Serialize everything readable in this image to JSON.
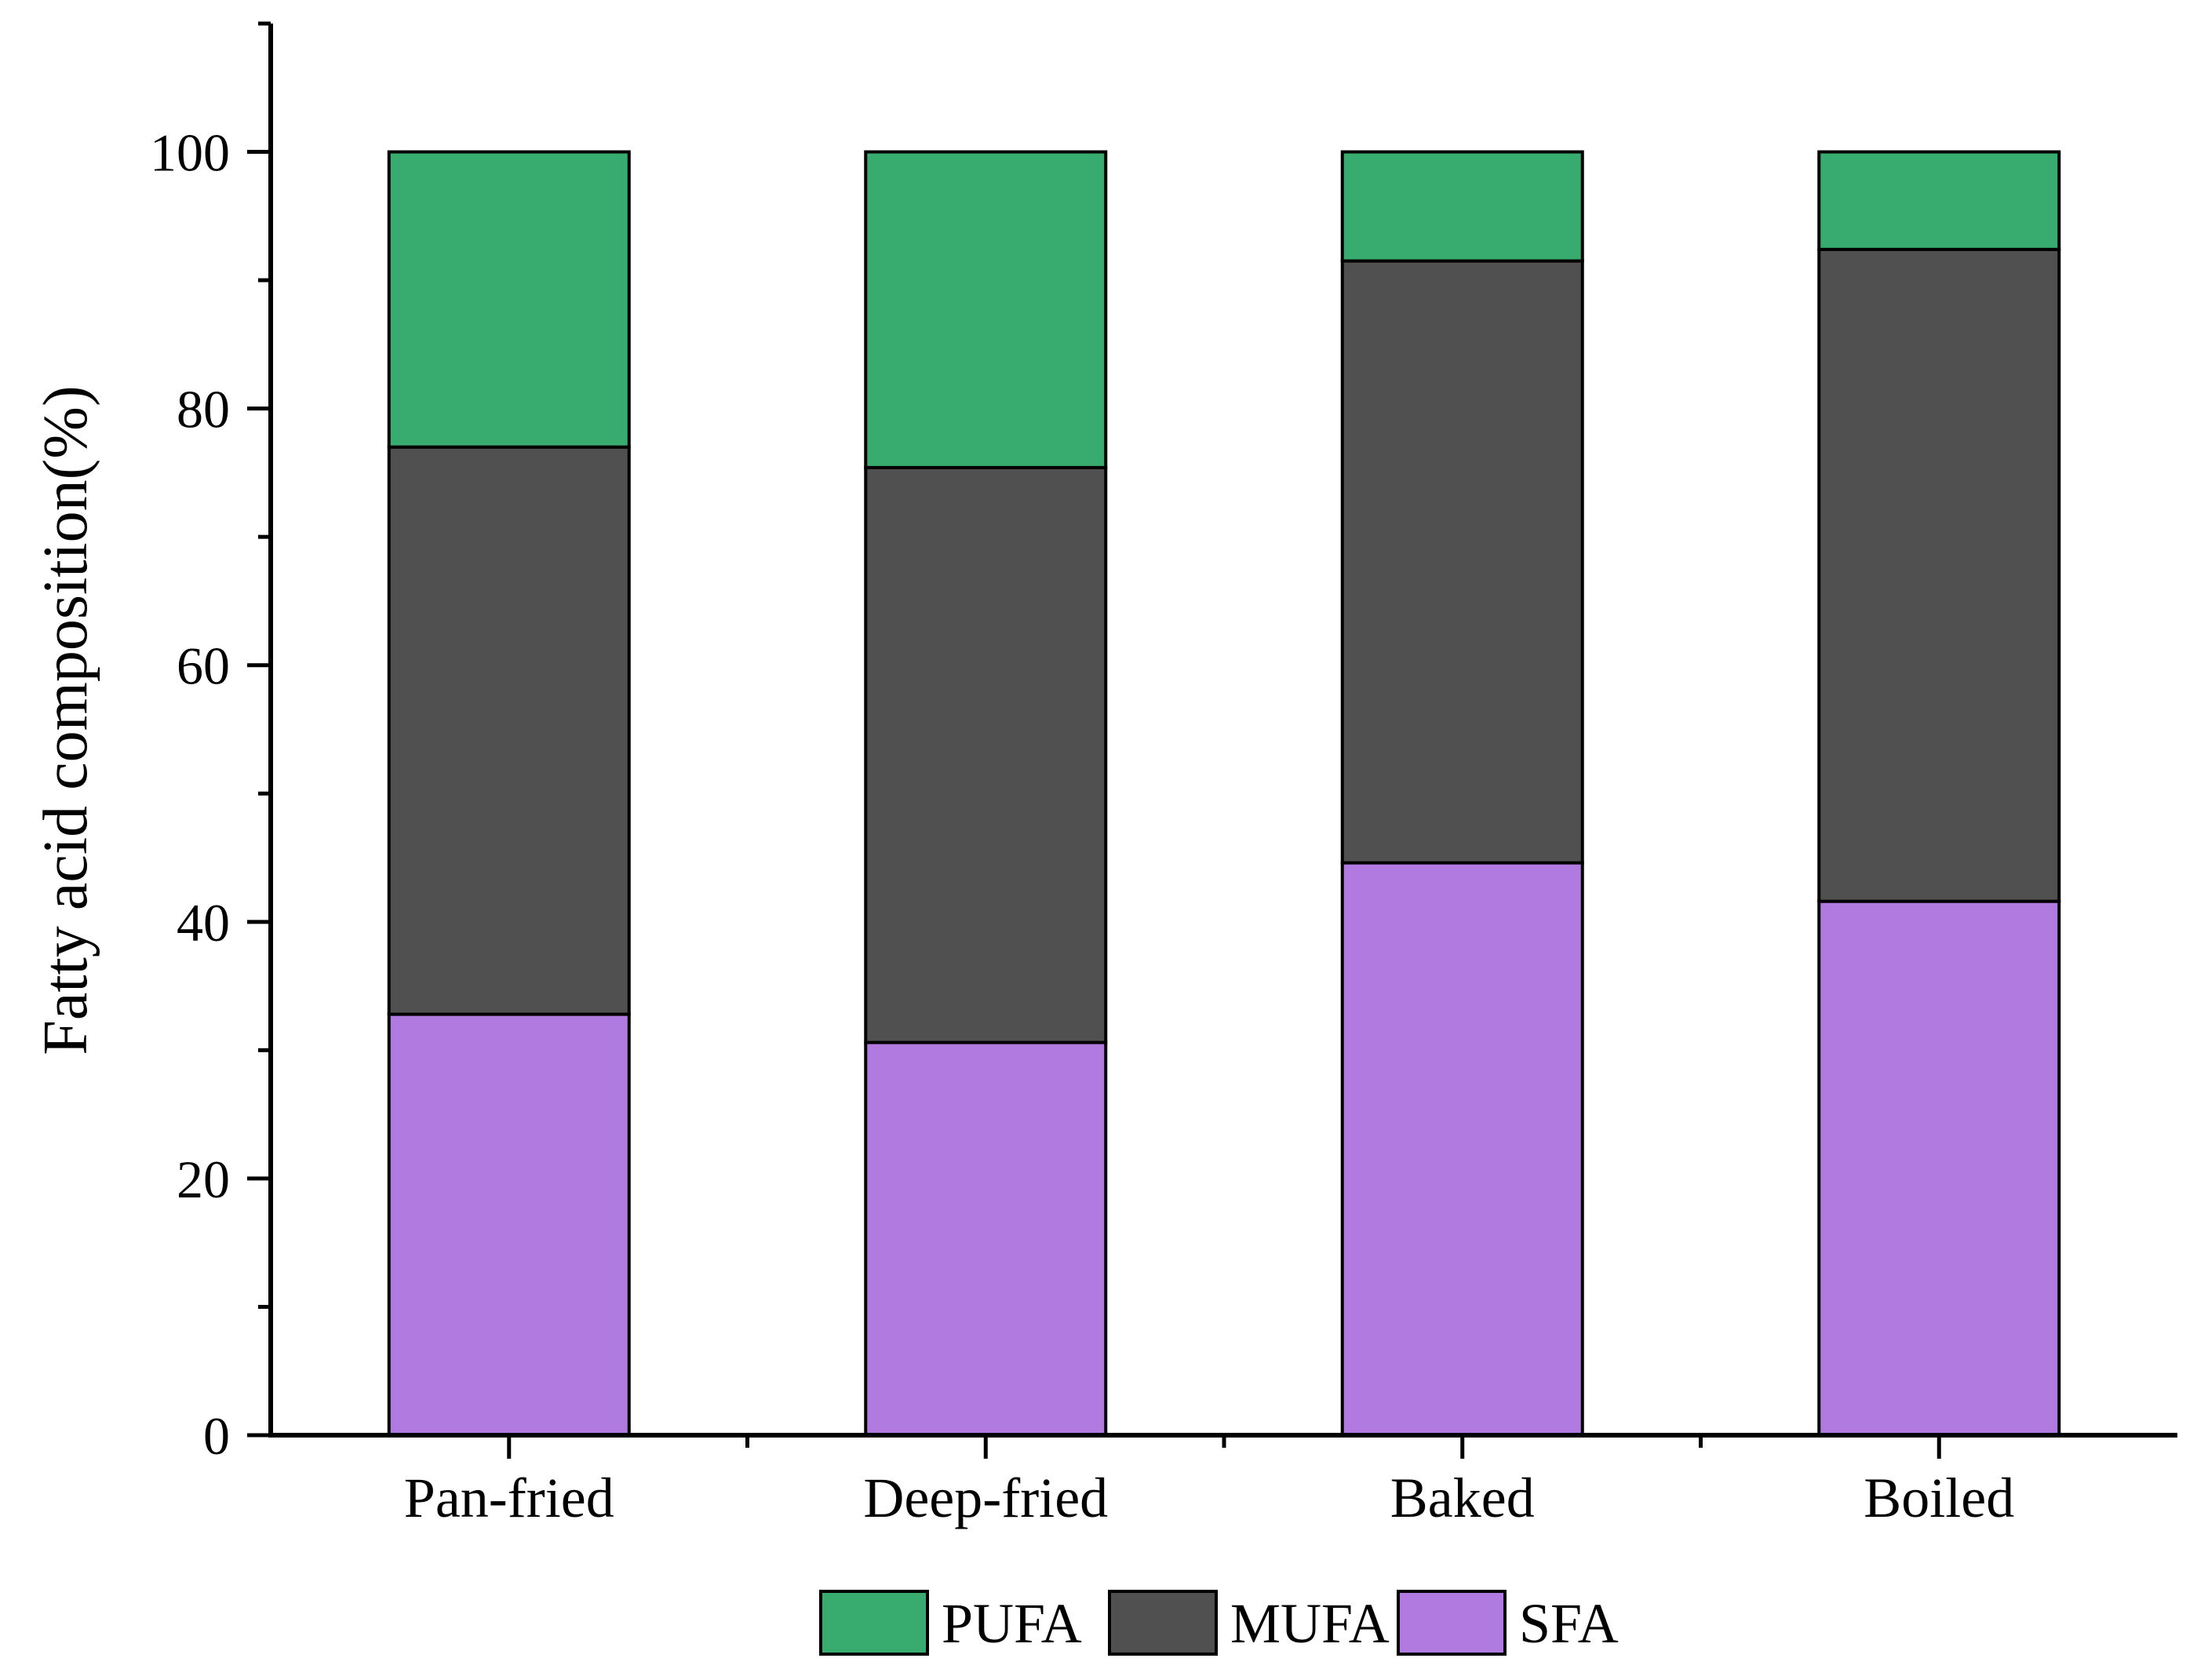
{
  "chart_data": {
    "type": "bar",
    "stacked": true,
    "title": "",
    "xlabel": "",
    "ylabel": "Fatty acid composition(%)",
    "ylim": [
      0,
      110
    ],
    "yticks": [
      0,
      20,
      40,
      60,
      80,
      100
    ],
    "categories": [
      "Pan-fried",
      "Deep-fried",
      "Baked",
      "Boiled"
    ],
    "series": [
      {
        "name": "SFA",
        "color": "#b07ae0",
        "values": [
          32.8,
          30.6,
          44.6,
          41.6
        ]
      },
      {
        "name": "MUFA",
        "color": "#505050",
        "values": [
          44.2,
          44.8,
          46.9,
          50.8
        ]
      },
      {
        "name": "PUFA",
        "color": "#38ab6e",
        "values": [
          23.0,
          24.6,
          8.5,
          7.6
        ]
      }
    ],
    "legend": {
      "position": "bottom",
      "order": [
        "PUFA",
        "MUFA",
        "SFA"
      ]
    },
    "grid": false
  }
}
